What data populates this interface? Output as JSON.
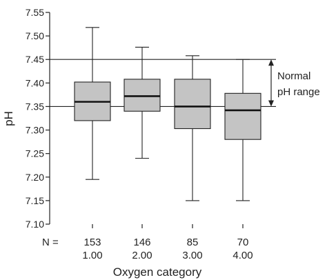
{
  "chart_data": {
    "type": "boxplot",
    "ylabel": "pH",
    "xlabel": "Oxygen category",
    "ylim": [
      7.1,
      7.55
    ],
    "yticks": [
      "7.10",
      "7.15",
      "7.20",
      "7.25",
      "7.30",
      "7.35",
      "7.40",
      "7.45",
      "7.50",
      "7.55"
    ],
    "n_label": "N =",
    "categories": [
      {
        "n": "153",
        "label": "1.00",
        "whisker_low": 7.195,
        "q1": 7.32,
        "median": 7.36,
        "q3": 7.402,
        "whisker_high": 7.518
      },
      {
        "n": "146",
        "label": "2.00",
        "whisker_low": 7.24,
        "q1": 7.34,
        "median": 7.372,
        "q3": 7.408,
        "whisker_high": 7.476
      },
      {
        "n": "85",
        "label": "3.00",
        "whisker_low": 7.15,
        "q1": 7.303,
        "median": 7.35,
        "q3": 7.408,
        "whisker_high": 7.458
      },
      {
        "n": "70",
        "label": "4.00",
        "whisker_low": 7.15,
        "q1": 7.28,
        "median": 7.342,
        "q3": 7.378,
        "whisker_high": 7.45
      }
    ],
    "reference_lines": [
      7.45,
      7.35
    ],
    "annotation": {
      "line1": "Normal",
      "line2": "pH range",
      "low": 7.35,
      "high": 7.45
    },
    "box_color": "#c4c4c4",
    "grid": false
  }
}
